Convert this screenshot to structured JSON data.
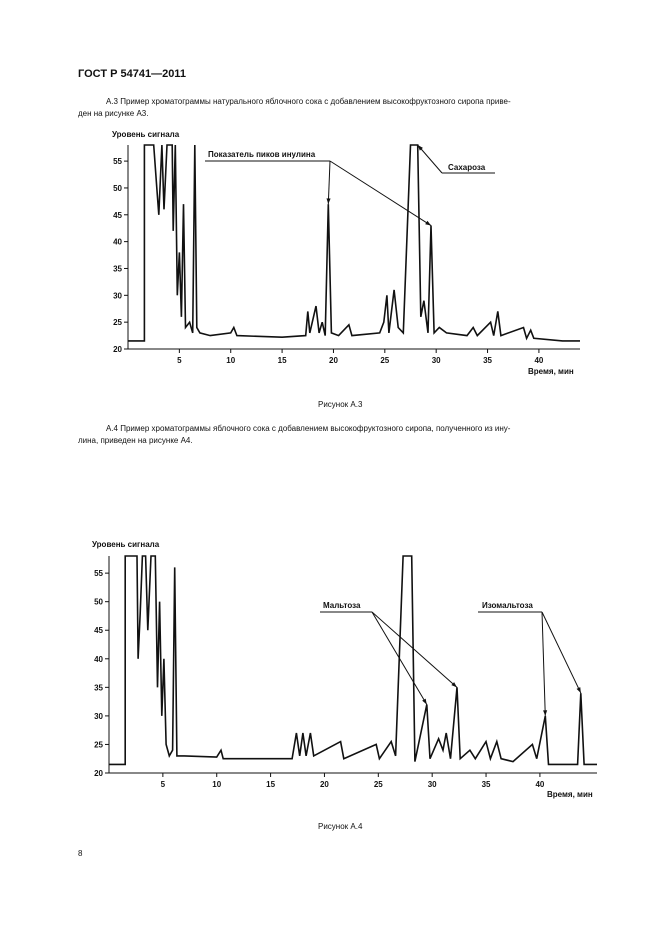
{
  "header": "ГОСТ Р 54741—2011",
  "paragraphs": [
    [
      "А.3 Пример хроматограммы натурального яблочного сока с добавлением высокофруктозного сиропа приве-",
      "ден на рисунке А3."
    ],
    [
      "А.4 Пример хроматограммы яблочного сока с добавлением высокофруктозного сиропа, полученного из ину-",
      "лина, приведен на рисунке А4."
    ]
  ],
  "captions": [
    "Рисунок А.3",
    "Рисунок А.4"
  ],
  "page_number": "8",
  "chart_data": [
    {
      "type": "line",
      "y_label": "Уровень сигнала",
      "x_label": "Время, мин",
      "xlim": [
        0,
        44
      ],
      "ylim": [
        20,
        58
      ],
      "xticks": [
        5,
        10,
        15,
        20,
        25,
        30,
        35,
        40
      ],
      "yticks": [
        20,
        25,
        30,
        35,
        40,
        45,
        50,
        55
      ],
      "color": "#111111",
      "x": [
        0,
        1.6,
        1.6,
        2.5,
        2.8,
        3.0,
        3.3,
        3.5,
        3.8,
        4.3,
        4.4,
        4.6,
        4.8,
        5.0,
        5.2,
        5.4,
        5.6,
        6.0,
        6.3,
        6.5,
        6.7,
        7,
        8,
        10,
        10.3,
        10.6,
        15,
        17.3,
        17.5,
        17.7,
        18.3,
        18.6,
        18.9,
        19.2,
        19.5,
        19.8,
        20.5,
        21.5,
        21.8,
        24.5,
        24.9,
        25.2,
        25.4,
        25.9,
        26.3,
        26.8,
        27.5,
        28.2,
        28.5,
        28.8,
        29.2,
        29.5,
        29.8,
        30.3,
        31,
        33,
        33.6,
        34,
        35.3,
        35.6,
        36,
        36.3,
        38.5,
        38.8,
        39.2,
        39.5,
        42.3,
        44
      ],
      "y": [
        21.5,
        21.5,
        58,
        58,
        50,
        45,
        58,
        46,
        58,
        58,
        42,
        58,
        30,
        38,
        26,
        47,
        24,
        25,
        23,
        58,
        24,
        23,
        22.5,
        23,
        24,
        22.5,
        22.2,
        22.5,
        27,
        23,
        28,
        23,
        25,
        22.5,
        47,
        23,
        22.5,
        24.5,
        22.5,
        23,
        25,
        30,
        23,
        31,
        24,
        23,
        58,
        58,
        26,
        29,
        23,
        43,
        23,
        24,
        23,
        22.5,
        24,
        22.5,
        25,
        22.5,
        27,
        22.5,
        24,
        22,
        23.5,
        22,
        21.5,
        21.5
      ],
      "annotations": [
        {
          "text": "Показатель пиков инулина",
          "points": [
            {
              "x": 19.5,
              "y": 47
            },
            {
              "x": 29.5,
              "y": 43
            }
          ]
        },
        {
          "text": "Сахароза",
          "points": [
            {
              "x": 28.2,
              "y": 58
            }
          ]
        }
      ]
    },
    {
      "type": "line",
      "y_label": "Уровень сигнала",
      "x_label": "Время, мин",
      "xlim": [
        0,
        45.3
      ],
      "ylim": [
        20,
        58
      ],
      "xticks": [
        5,
        10,
        15,
        20,
        25,
        30,
        35,
        40
      ],
      "yticks": [
        20,
        25,
        30,
        35,
        40,
        45,
        50,
        55
      ],
      "color": "#111111",
      "x": [
        0,
        1.5,
        1.5,
        2.6,
        2.7,
        2.9,
        3.1,
        3.4,
        3.6,
        3.9,
        4.3,
        4.5,
        4.7,
        4.9,
        5.1,
        5.3,
        5.6,
        5.9,
        6.1,
        6.3,
        7,
        10,
        10.4,
        10.6,
        17,
        17.4,
        17.7,
        18,
        18.3,
        18.7,
        19,
        21.5,
        21.8,
        24.8,
        25.1,
        26.2,
        26.6,
        27.3,
        28.1,
        28.4,
        29.5,
        29.8,
        30.6,
        31,
        31.3,
        31.7,
        32.3,
        32.6,
        33.5,
        34,
        35,
        35.4,
        36,
        36.4,
        37.5,
        39.3,
        39.7,
        40.5,
        40.8,
        43.5,
        43.8,
        44.1,
        45.3
      ],
      "y": [
        21.5,
        21.5,
        58,
        58,
        40,
        48,
        58,
        58,
        45,
        58,
        58,
        35,
        50,
        30,
        40,
        25,
        23,
        24,
        56,
        23,
        23,
        22.8,
        24,
        22.5,
        22.5,
        27,
        23,
        27,
        23,
        27,
        23,
        25.5,
        22.5,
        25,
        22.5,
        25.5,
        23,
        58,
        58,
        22,
        32,
        22.5,
        26,
        24,
        27,
        22.5,
        35,
        22.5,
        24,
        22.5,
        25.5,
        22.5,
        25.5,
        22.5,
        22,
        25,
        22.5,
        30,
        21.5,
        21.5,
        34,
        21.5,
        21.5
      ],
      "annotations": [
        {
          "text": "Мальтоза",
          "points": [
            {
              "x": 29.5,
              "y": 32
            },
            {
              "x": 32.3,
              "y": 35
            }
          ]
        },
        {
          "text": "Изомальтоза",
          "points": [
            {
              "x": 40.5,
              "y": 30
            },
            {
              "x": 43.8,
              "y": 34
            }
          ]
        }
      ]
    }
  ]
}
